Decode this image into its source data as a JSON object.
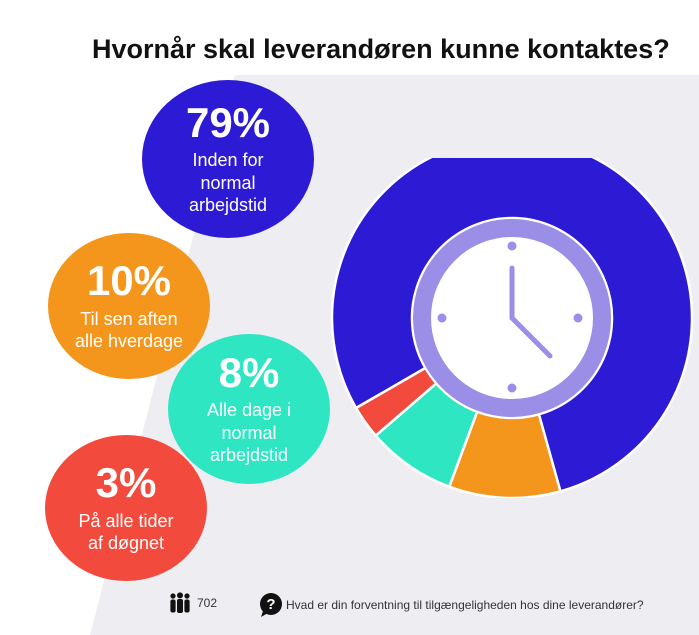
{
  "title": "Hvornår skal leverandøren kunne kontaktes?",
  "chart_data": {
    "type": "pie",
    "title": "Hvornår skal leverandøren kunne kontaktes?",
    "slices": [
      {
        "label": "Inden for normal arbejdstid",
        "value": 79,
        "display": "79%",
        "color": "#2d1ad4"
      },
      {
        "label": "Til sen aften alle hverdage",
        "value": 10,
        "display": "10%",
        "color": "#f5961c"
      },
      {
        "label": "Alle dage i normal arbejdstid",
        "value": 8,
        "display": "8%",
        "color": "#2ee6c2"
      },
      {
        "label": "På alle tider af døgnet",
        "value": 3,
        "display": "3%",
        "color": "#f24a3d"
      }
    ]
  },
  "bubbles": [
    {
      "pct": "79%",
      "label": "Inden for\nnormal\narbejdstid"
    },
    {
      "pct": "10%",
      "label": "Til sen aften\nalle hverdage"
    },
    {
      "pct": "8%",
      "label": "Alle dage i\nnormal\narbejdstid"
    },
    {
      "pct": "3%",
      "label": "På alle tider\naf døgnet"
    }
  ],
  "footer": {
    "respondents_icon": "people-icon",
    "respondents": "702",
    "question_icon": "speech-bubble-question-icon",
    "question": "Hvad er din forventning til tilgængeligheden hos dine leverandører?"
  },
  "center_icon": "clock-icon",
  "colors": {
    "clock": "#9b8ee6"
  }
}
